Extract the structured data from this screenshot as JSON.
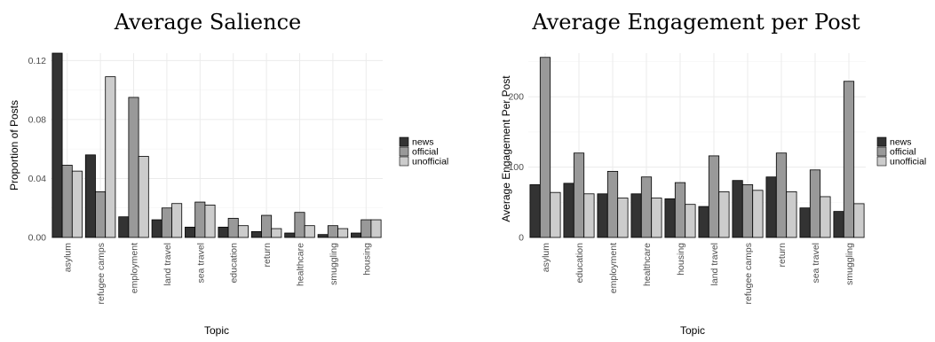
{
  "chart_data": [
    {
      "type": "bar",
      "title": "Average Salience",
      "xlabel": "Topic",
      "ylabel": "Proportion of Posts",
      "ylim": [
        0,
        0.125
      ],
      "yticks": [
        0.0,
        0.04,
        0.08,
        0.12
      ],
      "ytick_labels": [
        "0.00",
        "0.04",
        "0.08",
        "0.12"
      ],
      "grid": true,
      "legend_position": "right",
      "categories": [
        "asylum",
        "refugee camps",
        "employment",
        "land travel",
        "sea travel",
        "education",
        "return",
        "healthcare",
        "smuggling",
        "housing"
      ],
      "series": [
        {
          "name": "news",
          "color": "#333333",
          "values": [
            0.125,
            0.056,
            0.014,
            0.012,
            0.007,
            0.007,
            0.004,
            0.003,
            0.002,
            0.003
          ]
        },
        {
          "name": "official",
          "color": "#999999",
          "values": [
            0.049,
            0.031,
            0.095,
            0.02,
            0.024,
            0.013,
            0.015,
            0.017,
            0.008,
            0.012
          ]
        },
        {
          "name": "unofficial",
          "color": "#cccccc",
          "values": [
            0.045,
            0.109,
            0.055,
            0.023,
            0.022,
            0.008,
            0.006,
            0.008,
            0.006,
            0.012
          ]
        }
      ]
    },
    {
      "type": "bar",
      "title": "Average Engagement per Post",
      "xlabel": "Topic",
      "ylabel": "Average Engagement Per Post",
      "ylim": [
        0,
        262
      ],
      "yticks": [
        0,
        100,
        200
      ],
      "ytick_labels": [
        "0",
        "100",
        "200"
      ],
      "grid": true,
      "legend_position": "right",
      "categories": [
        "asylum",
        "education",
        "employment",
        "healthcare",
        "housing",
        "land travel",
        "refugee camps",
        "return",
        "sea travel",
        "smuggling"
      ],
      "series": [
        {
          "name": "news",
          "color": "#333333",
          "values": [
            75,
            77,
            62,
            62,
            55,
            44,
            81,
            86,
            42,
            37
          ]
        },
        {
          "name": "official",
          "color": "#999999",
          "values": [
            256,
            120,
            94,
            86,
            78,
            116,
            75,
            120,
            96,
            222
          ]
        },
        {
          "name": "unofficial",
          "color": "#cccccc",
          "values": [
            64,
            62,
            56,
            56,
            47,
            65,
            67,
            65,
            58,
            48
          ]
        }
      ]
    }
  ]
}
